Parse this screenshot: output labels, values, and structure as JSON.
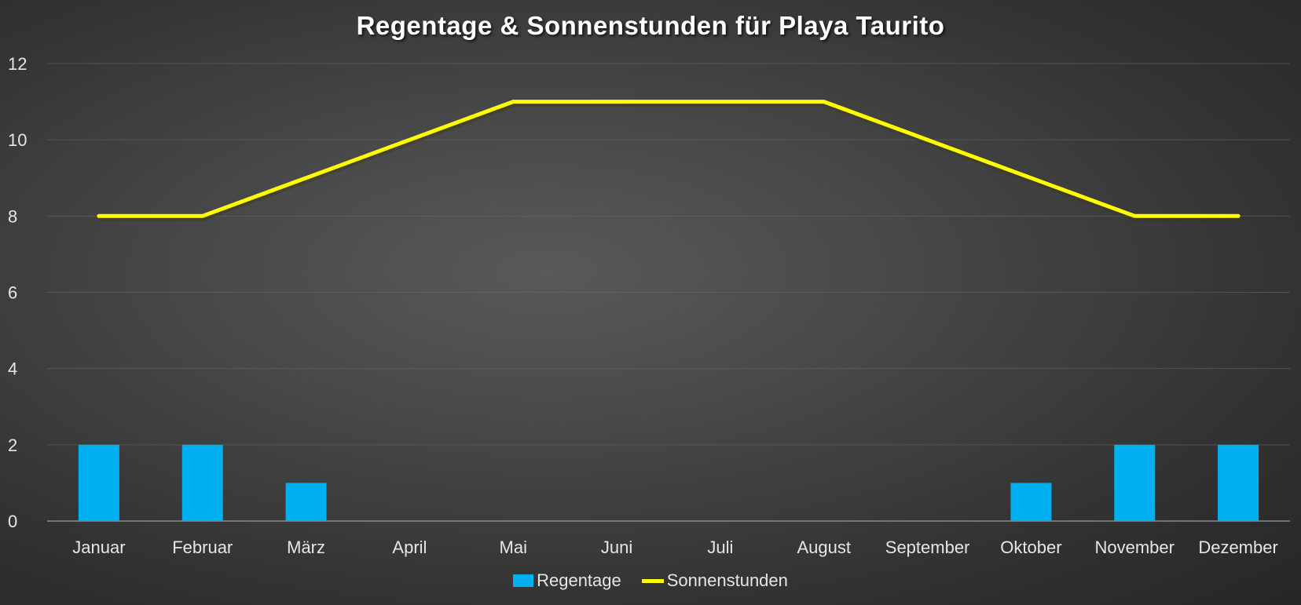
{
  "chart_data": {
    "type": "bar",
    "title": "Regentage & Sonnenstunden für Playa Taurito",
    "xlabel": "",
    "ylabel": "",
    "ylim": [
      0,
      12
    ],
    "yticks": [
      0,
      2,
      4,
      6,
      8,
      10,
      12
    ],
    "grid": true,
    "legend_position": "bottom",
    "categories": [
      "Januar",
      "Februar",
      "März",
      "April",
      "Mai",
      "Juni",
      "Juli",
      "August",
      "September",
      "Oktober",
      "November",
      "Dezember"
    ],
    "series": [
      {
        "name": "Regentage",
        "type": "bar",
        "color": "#00b0f0",
        "values": [
          2,
          2,
          1,
          0,
          0,
          0,
          0,
          0,
          0,
          1,
          2,
          2
        ]
      },
      {
        "name": "Sonnenstunden",
        "type": "line",
        "color": "#ffff00",
        "values": [
          8,
          8,
          9,
          10,
          11,
          11,
          11,
          11,
          10,
          9,
          8,
          8
        ]
      }
    ]
  }
}
